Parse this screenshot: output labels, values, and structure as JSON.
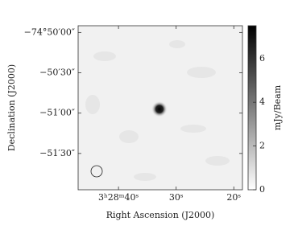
{
  "chart_data": {
    "type": "image",
    "x_label": "Right Ascension (J2000)",
    "y_label": "Declination (J2000)",
    "xlim": [
      47,
      18.5
    ],
    "xticks": [
      {
        "value": 40,
        "label": "3ʰ28ᵐ40ˢ"
      },
      {
        "value": 30,
        "label": "30ˢ"
      },
      {
        "value": 20,
        "label": "20ˢ"
      }
    ],
    "ylim": [
      -269517,
      -269395
    ],
    "yticks": [
      {
        "value": -269400,
        "label": "−74°50′00″"
      },
      {
        "value": -269430,
        "label": "−50′30″"
      },
      {
        "value": -269460,
        "label": "−51′00″"
      },
      {
        "value": -269490,
        "label": "−51′30″"
      }
    ],
    "source": {
      "x": 32.9,
      "y": -269457,
      "peak": 7.4
    },
    "colorbar": {
      "label": "mJy/Beam",
      "lim": [
        0,
        7.5
      ],
      "ticks": [
        0,
        2,
        4,
        6
      ]
    }
  }
}
